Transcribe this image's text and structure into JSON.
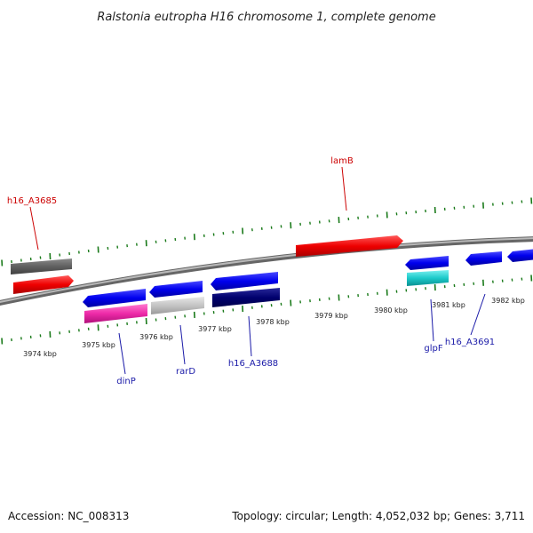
{
  "title": "Ralstonia eutropha H16 chromosome 1, complete genome",
  "footer": {
    "accession": "Accession: NC_008313",
    "stats": "Topology: circular; Length: 4,052,032 bp; Genes: 3,711"
  },
  "colors": {
    "tick_green": "#1a7a1a",
    "backbone_grey": "#888888",
    "label_red": "#cc0000",
    "label_blue": "#1a1aa8"
  },
  "scale_labels": [
    "3974 kbp",
    "3975 kbp",
    "3976 kbp",
    "3977 kbp",
    "3978 kbp",
    "3979 kbp",
    "3980 kbp",
    "3981 kbp",
    "3982 kbp"
  ],
  "gene_labels": [
    {
      "id": "h16_A3685",
      "text": "h16_A3685",
      "color": "red"
    },
    {
      "id": "lamB",
      "text": "lamB",
      "color": "red"
    },
    {
      "id": "dinP",
      "text": "dinP",
      "color": "blue"
    },
    {
      "id": "rarD",
      "text": "rarD",
      "color": "blue"
    },
    {
      "id": "h16_A3688",
      "text": "h16_A3688",
      "color": "blue"
    },
    {
      "id": "glpF",
      "text": "glpF",
      "color": "blue"
    },
    {
      "id": "h16_A3691",
      "text": "h16_A3691",
      "color": "blue"
    }
  ]
}
